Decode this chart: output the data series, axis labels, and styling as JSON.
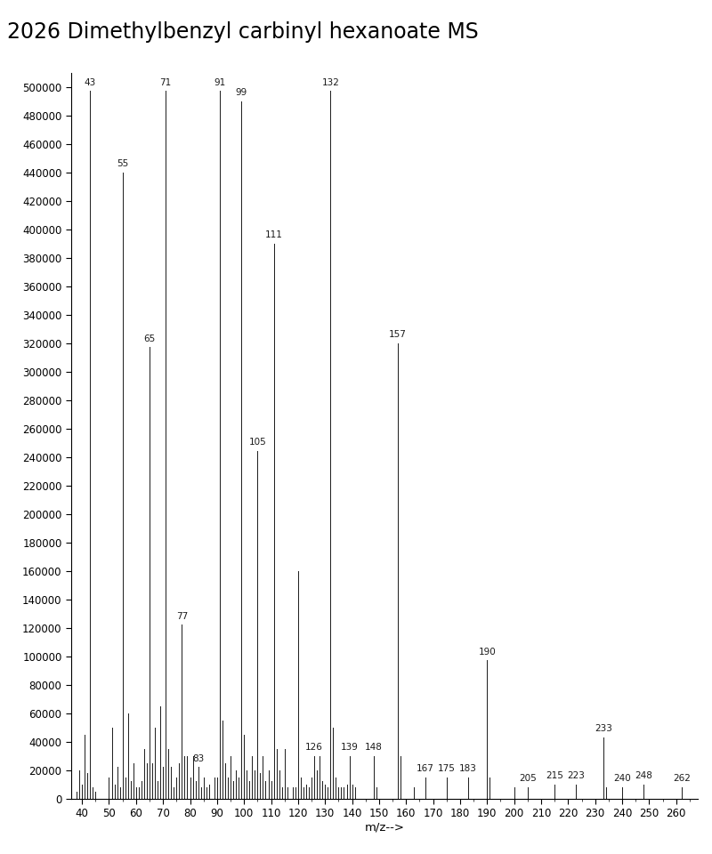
{
  "title": "2026 Dimethylbenzyl carbinyl hexanoate MS",
  "xlabel": "m/z-->",
  "ylabel": "",
  "xlim": [
    36,
    268
  ],
  "ylim": [
    0,
    510000
  ],
  "xticks": [
    40,
    50,
    60,
    70,
    80,
    90,
    100,
    110,
    120,
    130,
    140,
    150,
    160,
    170,
    180,
    190,
    200,
    210,
    220,
    230,
    240,
    250,
    260
  ],
  "yticks": [
    0,
    20000,
    40000,
    60000,
    80000,
    100000,
    120000,
    140000,
    160000,
    180000,
    200000,
    220000,
    240000,
    260000,
    280000,
    300000,
    320000,
    340000,
    360000,
    380000,
    400000,
    420000,
    440000,
    460000,
    480000,
    500000
  ],
  "peaks": [
    [
      38,
      5000
    ],
    [
      39,
      20000
    ],
    [
      40,
      10000
    ],
    [
      41,
      45000
    ],
    [
      42,
      18000
    ],
    [
      43,
      497000
    ],
    [
      44,
      8000
    ],
    [
      45,
      5000
    ],
    [
      50,
      15000
    ],
    [
      51,
      50000
    ],
    [
      52,
      10000
    ],
    [
      53,
      22000
    ],
    [
      54,
      8000
    ],
    [
      55,
      440000
    ],
    [
      56,
      15000
    ],
    [
      57,
      60000
    ],
    [
      58,
      12000
    ],
    [
      59,
      25000
    ],
    [
      60,
      8000
    ],
    [
      61,
      8000
    ],
    [
      62,
      12000
    ],
    [
      63,
      35000
    ],
    [
      64,
      25000
    ],
    [
      65,
      317000
    ],
    [
      66,
      25000
    ],
    [
      67,
      50000
    ],
    [
      68,
      12000
    ],
    [
      69,
      65000
    ],
    [
      70,
      22000
    ],
    [
      71,
      497000
    ],
    [
      72,
      35000
    ],
    [
      73,
      22000
    ],
    [
      74,
      8000
    ],
    [
      75,
      15000
    ],
    [
      76,
      25000
    ],
    [
      77,
      122000
    ],
    [
      78,
      30000
    ],
    [
      79,
      30000
    ],
    [
      80,
      15000
    ],
    [
      81,
      30000
    ],
    [
      82,
      12000
    ],
    [
      83,
      22000
    ],
    [
      84,
      8000
    ],
    [
      85,
      15000
    ],
    [
      86,
      8000
    ],
    [
      87,
      10000
    ],
    [
      89,
      15000
    ],
    [
      90,
      15000
    ],
    [
      91,
      497000
    ],
    [
      92,
      55000
    ],
    [
      93,
      25000
    ],
    [
      94,
      15000
    ],
    [
      95,
      30000
    ],
    [
      96,
      12000
    ],
    [
      97,
      20000
    ],
    [
      98,
      15000
    ],
    [
      99,
      490000
    ],
    [
      100,
      45000
    ],
    [
      101,
      20000
    ],
    [
      102,
      12000
    ],
    [
      103,
      30000
    ],
    [
      104,
      20000
    ],
    [
      105,
      244000
    ],
    [
      106,
      18000
    ],
    [
      107,
      30000
    ],
    [
      108,
      12000
    ],
    [
      109,
      20000
    ],
    [
      110,
      12000
    ],
    [
      111,
      390000
    ],
    [
      112,
      35000
    ],
    [
      113,
      20000
    ],
    [
      114,
      8000
    ],
    [
      115,
      35000
    ],
    [
      116,
      8000
    ],
    [
      118,
      8000
    ],
    [
      119,
      8000
    ],
    [
      120,
      160000
    ],
    [
      121,
      15000
    ],
    [
      122,
      8000
    ],
    [
      123,
      10000
    ],
    [
      124,
      8000
    ],
    [
      125,
      15000
    ],
    [
      126,
      30000
    ],
    [
      127,
      20000
    ],
    [
      128,
      30000
    ],
    [
      129,
      12000
    ],
    [
      130,
      10000
    ],
    [
      131,
      8000
    ],
    [
      132,
      497000
    ],
    [
      133,
      50000
    ],
    [
      134,
      15000
    ],
    [
      135,
      8000
    ],
    [
      136,
      8000
    ],
    [
      137,
      8000
    ],
    [
      138,
      10000
    ],
    [
      139,
      30000
    ],
    [
      140,
      10000
    ],
    [
      141,
      8000
    ],
    [
      148,
      30000
    ],
    [
      149,
      8000
    ],
    [
      157,
      320000
    ],
    [
      158,
      30000
    ],
    [
      163,
      8000
    ],
    [
      167,
      15000
    ],
    [
      175,
      15000
    ],
    [
      183,
      15000
    ],
    [
      190,
      97000
    ],
    [
      191,
      15000
    ],
    [
      200,
      8000
    ],
    [
      205,
      8000
    ],
    [
      215,
      10000
    ],
    [
      223,
      10000
    ],
    [
      233,
      43000
    ],
    [
      234,
      8000
    ],
    [
      240,
      8000
    ],
    [
      248,
      10000
    ],
    [
      262,
      8000
    ]
  ],
  "labeled_peaks": [
    [
      "43",
      497000
    ],
    [
      "55",
      440000
    ],
    [
      "65",
      317000
    ],
    [
      "71",
      497000
    ],
    [
      "77",
      122000
    ],
    [
      "83",
      22000
    ],
    [
      "91",
      497000
    ],
    [
      "99",
      490000
    ],
    [
      "105",
      244000
    ],
    [
      "111",
      390000
    ],
    [
      "126",
      30000
    ],
    [
      "132",
      497000
    ],
    [
      "139",
      30000
    ],
    [
      "148",
      30000
    ],
    [
      "157",
      320000
    ],
    [
      "167",
      15000
    ],
    [
      "175",
      15000
    ],
    [
      "183",
      15000
    ],
    [
      "190",
      97000
    ],
    [
      "205",
      8000
    ],
    [
      "215",
      10000
    ],
    [
      "223",
      10000
    ],
    [
      "233",
      43000
    ],
    [
      "240",
      8000
    ],
    [
      "248",
      10000
    ],
    [
      "262",
      8000
    ]
  ],
  "background_color": "#ffffff",
  "line_color": "#1a1a1a",
  "title_fontsize": 17,
  "label_fontsize": 7.5,
  "tick_fontsize": 8.5
}
